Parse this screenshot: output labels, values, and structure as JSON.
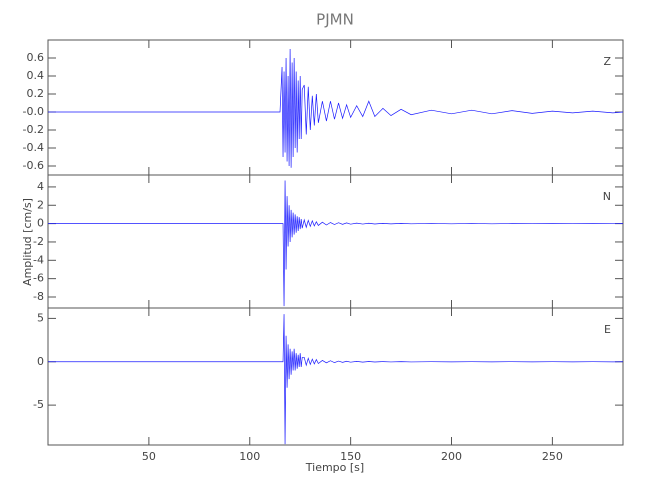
{
  "chart_data": [
    {
      "type": "line",
      "title": "PJMN",
      "label": "Z",
      "color": "#1a1aff",
      "x": [
        0,
        50,
        100,
        115,
        116,
        116.5,
        117,
        117.5,
        118,
        118.5,
        119,
        119.5,
        120,
        120.5,
        121,
        121.5,
        122,
        122.5,
        123,
        123.5,
        124,
        124.5,
        125,
        125.5,
        126,
        127,
        128,
        129,
        130,
        131,
        132,
        133,
        134,
        136,
        138,
        140,
        142,
        144,
        146,
        148,
        150,
        153,
        156,
        159,
        162,
        166,
        170,
        175,
        180,
        190,
        200,
        210,
        220,
        230,
        240,
        250,
        260,
        270,
        280,
        285
      ],
      "values": [
        0,
        0,
        0,
        0,
        0.5,
        -0.5,
        0.45,
        -0.45,
        0.6,
        -0.55,
        0.4,
        -0.6,
        0.7,
        -0.62,
        0.55,
        -0.5,
        0.6,
        -0.4,
        0.45,
        -0.45,
        0.35,
        -0.3,
        0.4,
        -0.3,
        0.25,
        0.3,
        -0.25,
        0.28,
        -0.2,
        0.18,
        -0.15,
        0.2,
        -0.12,
        0.12,
        -0.1,
        0.12,
        -0.08,
        0.1,
        -0.07,
        0.08,
        -0.06,
        0.07,
        -0.05,
        0.12,
        -0.05,
        0.04,
        -0.04,
        0.03,
        -0.03,
        0.02,
        -0.02,
        0.02,
        -0.02,
        0.015,
        -0.015,
        0.01,
        -0.01,
        0.01,
        -0.01,
        0
      ],
      "xlim": [
        0,
        285
      ],
      "ylim": [
        -0.7,
        0.8
      ],
      "yticks": [
        0.6,
        0.4,
        0.2,
        {
          "value": 0,
          "label": "-0.0"
        },
        -0.2,
        -0.4,
        -0.6
      ]
    },
    {
      "type": "line",
      "label": "N",
      "ylabel": "Amplitud [cm/s]",
      "color": "#1a1aff",
      "x": [
        0,
        50,
        100,
        115,
        116,
        116.5,
        117,
        117.5,
        118,
        118.5,
        119,
        119.5,
        120,
        120.5,
        121,
        121.5,
        122,
        122.5,
        123,
        123.5,
        124,
        124.5,
        125,
        125.5,
        126,
        127,
        128,
        129,
        130,
        131,
        132,
        133,
        134,
        136,
        138,
        140,
        142,
        144,
        146,
        148,
        150,
        153,
        156,
        159,
        162,
        166,
        170,
        175,
        180,
        190,
        200,
        210,
        220,
        230,
        240,
        250,
        260,
        270,
        280,
        285
      ],
      "values": [
        0,
        0,
        0,
        0,
        0,
        0,
        -9,
        4.7,
        -5,
        3,
        -2.5,
        2,
        -2,
        1.5,
        -1.5,
        1.2,
        -1.2,
        1,
        -1,
        0.8,
        -0.8,
        0.7,
        -0.6,
        0.5,
        -0.5,
        0.4,
        -0.4,
        0.35,
        -0.3,
        0.3,
        -0.25,
        0.2,
        -0.2,
        0.15,
        -0.15,
        0.12,
        -0.1,
        0.1,
        -0.08,
        0.08,
        -0.06,
        0.05,
        -0.05,
        0.04,
        -0.04,
        0.03,
        -0.03,
        0.03,
        -0.02,
        0.02,
        -0.02,
        0.02,
        -0.02,
        0.01,
        -0.01,
        0.01,
        -0.01,
        0.01,
        -0.01,
        0
      ],
      "xlim": [
        0,
        285
      ],
      "ylim": [
        -9.2,
        5.3
      ],
      "yticks": [
        4,
        2,
        0,
        -2,
        -4,
        -6,
        -8
      ]
    },
    {
      "type": "line",
      "label": "E",
      "xlabel": "Tiempo [s]",
      "color": "#1a1aff",
      "x": [
        0,
        50,
        100,
        115,
        116,
        116.5,
        117,
        117.5,
        118,
        118.5,
        119,
        119.5,
        120,
        120.5,
        121,
        121.5,
        122,
        122.5,
        123,
        123.5,
        124,
        124.5,
        125,
        125.5,
        126,
        127,
        128,
        129,
        130,
        131,
        132,
        133,
        134,
        136,
        138,
        140,
        142,
        144,
        146,
        148,
        150,
        153,
        156,
        159,
        162,
        166,
        170,
        175,
        180,
        190,
        200,
        210,
        220,
        230,
        240,
        250,
        260,
        270,
        280,
        285
      ],
      "values": [
        0,
        0,
        0,
        0,
        0,
        0,
        5.5,
        -9.5,
        3,
        -3,
        2,
        -2,
        1.5,
        -1.5,
        1.2,
        -1,
        1.5,
        -1,
        1,
        -0.8,
        0.8,
        -0.6,
        1,
        -0.6,
        0.5,
        0.5,
        -0.4,
        0.4,
        -0.3,
        0.3,
        -0.25,
        0.25,
        -0.2,
        0.15,
        -0.12,
        0.12,
        -0.1,
        0.08,
        -0.07,
        0.06,
        -0.05,
        0.04,
        -0.04,
        0.03,
        -0.03,
        0.02,
        -0.02,
        0.02,
        -0.02,
        0.01,
        -0.01,
        0.01,
        -0.01,
        0.01,
        -0.01,
        0.01,
        -0.01,
        0.01,
        -0.01,
        0
      ],
      "xlim": [
        0,
        285
      ],
      "ylim": [
        -9.6,
        6.2
      ],
      "yticks": [
        5,
        0,
        -5
      ],
      "xticks": [
        50,
        100,
        150,
        200,
        250
      ]
    }
  ]
}
